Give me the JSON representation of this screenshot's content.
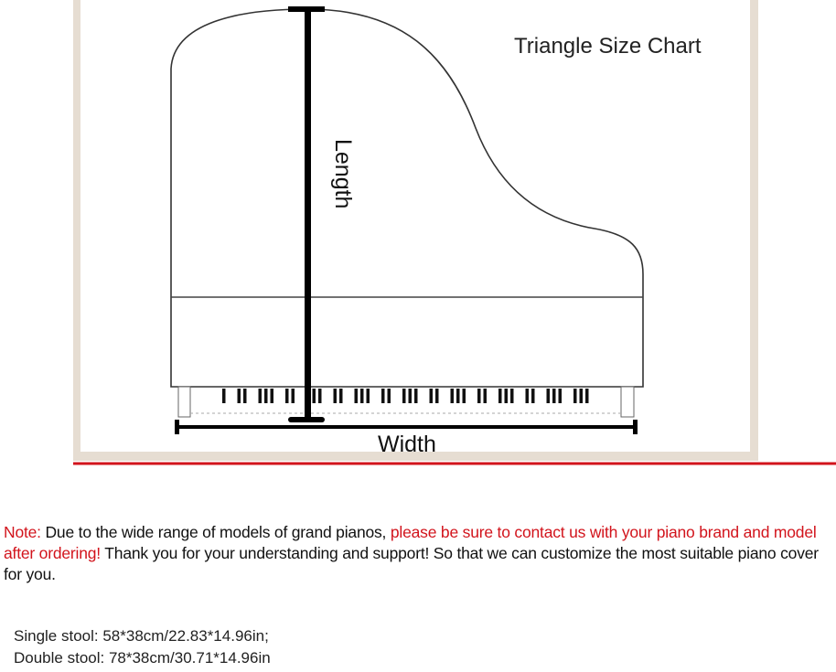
{
  "diagram": {
    "title": "Triangle Size Chart",
    "length_label": "Length",
    "width_label": "Width",
    "accent_line_color": "#d2141c",
    "frame_color": "#e6ddd2"
  },
  "note": {
    "prefix": "Note:",
    "text1": " Due to the wide range of models of grand pianos, ",
    "highlight": "please be sure to contact us with your piano brand and model after ordering!",
    "text2": " Thank you for your understanding and support! So that we can customize the most suitable piano cover for you."
  },
  "stools": [
    "Single stool: 58*38cm/22.83*14.96in;",
    "Double stool: 78*38cm/30.71*14.96in"
  ]
}
